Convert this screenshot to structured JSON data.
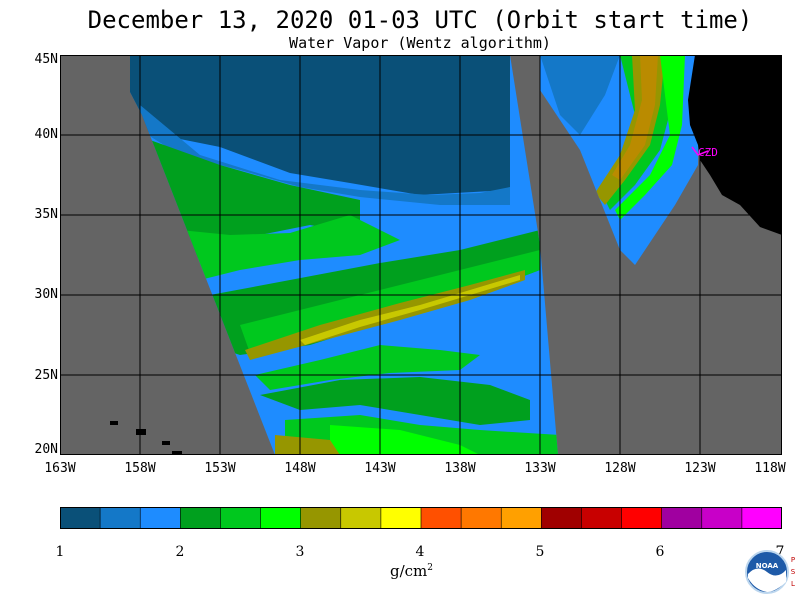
{
  "header": {
    "title": "December 13, 2020  01-03 UTC  (Orbit start time)",
    "subtitle": "Water Vapor (Wentz algorithm)"
  },
  "map": {
    "latitude_labels": [
      "45N",
      "40N",
      "35N",
      "30N",
      "25N",
      "20N"
    ],
    "longitude_labels": [
      "163W",
      "158W",
      "153W",
      "148W",
      "143W",
      "138W",
      "133W",
      "128W",
      "123W",
      "118W"
    ],
    "station_label": "CZD",
    "colors": {
      "land": "#000000",
      "no_data": "#646464",
      "grid": "#000000",
      "station": "#ff00ff"
    }
  },
  "colorbar": {
    "tick_labels": [
      "1",
      "2",
      "3",
      "4",
      "5",
      "6",
      "7"
    ],
    "units": "g/cm",
    "units_superscript": "2",
    "colors": [
      "#0a5078",
      "#1478c8",
      "#1e8cff",
      "#00a01e",
      "#00c81e",
      "#00ff00",
      "#969600",
      "#c8c800",
      "#ffff00",
      "#ff5000",
      "#ff7800",
      "#ffa000",
      "#a00000",
      "#c80000",
      "#ff0000",
      "#a000a0",
      "#c800c8",
      "#ff00ff"
    ]
  },
  "logo": {
    "text": "NOAA",
    "side_letters": [
      "P",
      "S",
      "L"
    ]
  }
}
